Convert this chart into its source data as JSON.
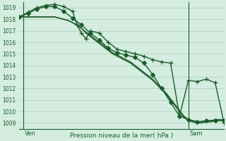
{
  "title": "Pression niveau de la mer( hPa )",
  "ylabel_ticks": [
    1009,
    1010,
    1011,
    1012,
    1013,
    1014,
    1015,
    1016,
    1017,
    1018,
    1019
  ],
  "ylim": [
    1008.5,
    1019.5
  ],
  "xlim": [
    0,
    46
  ],
  "ven_x": 1,
  "sam_x": 38,
  "bg_color": "#d4ede0",
  "grid_color": "#a8ccb8",
  "line_color": "#1a5c2a",
  "text_color": "#1a5c2a",
  "lines": [
    {
      "x": [
        0,
        1,
        2,
        3,
        4,
        5,
        6,
        7,
        8,
        9,
        10,
        11,
        12,
        13,
        14,
        15,
        16,
        17,
        18,
        19,
        20,
        21,
        22,
        23,
        24,
        25,
        26,
        27,
        28,
        29,
        30,
        31,
        32,
        33,
        34,
        35,
        36,
        37,
        38,
        39,
        40,
        41,
        42,
        43,
        44,
        45,
        46
      ],
      "y": [
        1018.2,
        1018.2,
        1018.2,
        1018.2,
        1018.2,
        1018.2,
        1018.2,
        1018.2,
        1018.2,
        1018.1,
        1018.0,
        1017.9,
        1017.7,
        1017.5,
        1017.2,
        1016.8,
        1016.5,
        1016.2,
        1015.9,
        1015.6,
        1015.3,
        1015.0,
        1014.8,
        1014.6,
        1014.4,
        1014.2,
        1013.9,
        1013.6,
        1013.3,
        1013.0,
        1012.7,
        1012.3,
        1011.9,
        1011.5,
        1011.0,
        1010.5,
        1010.0,
        1009.5,
        1009.2,
        1009.1,
        1009.0,
        1009.0,
        1009.1,
        1009.1,
        1009.2,
        1009.2,
        1009.2
      ],
      "marker": null,
      "linewidth": 1.0
    },
    {
      "x": [
        0,
        1,
        2,
        3,
        4,
        5,
        6,
        7,
        8,
        9,
        10,
        11,
        12,
        13,
        14,
        15,
        16,
        17,
        18,
        19,
        20,
        21,
        22,
        23,
        24,
        25,
        26,
        27,
        28,
        29,
        30,
        31,
        32,
        33,
        34,
        35,
        36,
        37,
        38,
        39,
        40,
        41,
        42,
        43,
        44,
        45,
        46
      ],
      "y": [
        1018.2,
        1018.2,
        1018.2,
        1018.2,
        1018.2,
        1018.2,
        1018.2,
        1018.2,
        1018.2,
        1018.1,
        1018.0,
        1017.9,
        1017.7,
        1017.5,
        1017.2,
        1016.9,
        1016.6,
        1016.3,
        1016.0,
        1015.7,
        1015.4,
        1015.1,
        1014.9,
        1014.7,
        1014.5,
        1014.3,
        1014.0,
        1013.7,
        1013.4,
        1013.1,
        1012.8,
        1012.4,
        1012.0,
        1011.6,
        1011.1,
        1010.6,
        1010.1,
        1009.6,
        1009.3,
        1009.2,
        1009.1,
        1009.1,
        1009.2,
        1009.2,
        1009.3,
        1009.3,
        1009.3
      ],
      "marker": null,
      "linewidth": 1.0
    },
    {
      "x": [
        0,
        2,
        4,
        6,
        8,
        10,
        12,
        14,
        16,
        18,
        20,
        22,
        24,
        26,
        28,
        30,
        32,
        34,
        36,
        38,
        40,
        42,
        44,
        46
      ],
      "y": [
        1018.2,
        1018.5,
        1018.9,
        1019.1,
        1019.1,
        1018.7,
        1018.1,
        1017.5,
        1016.8,
        1016.2,
        1015.5,
        1015.1,
        1014.9,
        1014.7,
        1014.2,
        1013.2,
        1012.0,
        1010.8,
        1009.6,
        1009.3,
        1009.1,
        1009.2,
        1009.2,
        1009.2
      ],
      "marker": "D",
      "markersize": 3,
      "linewidth": 1.0
    },
    {
      "x": [
        0,
        2,
        4,
        6,
        8,
        10,
        12,
        13,
        14,
        15,
        16,
        18,
        20,
        22,
        24,
        26,
        28,
        30,
        32,
        34,
        36,
        38,
        40,
        42,
        44,
        46
      ],
      "y": [
        1018.2,
        1018.6,
        1019.0,
        1019.2,
        1019.3,
        1019.1,
        1018.7,
        1017.5,
        1016.8,
        1016.3,
        1017.0,
        1016.8,
        1016.0,
        1015.4,
        1015.2,
        1015.0,
        1014.8,
        1014.5,
        1014.3,
        1014.2,
        1009.6,
        1012.7,
        1012.6,
        1012.8,
        1012.5,
        1009.0
      ],
      "marker": "+",
      "markersize": 4,
      "linewidth": 1.0
    }
  ]
}
